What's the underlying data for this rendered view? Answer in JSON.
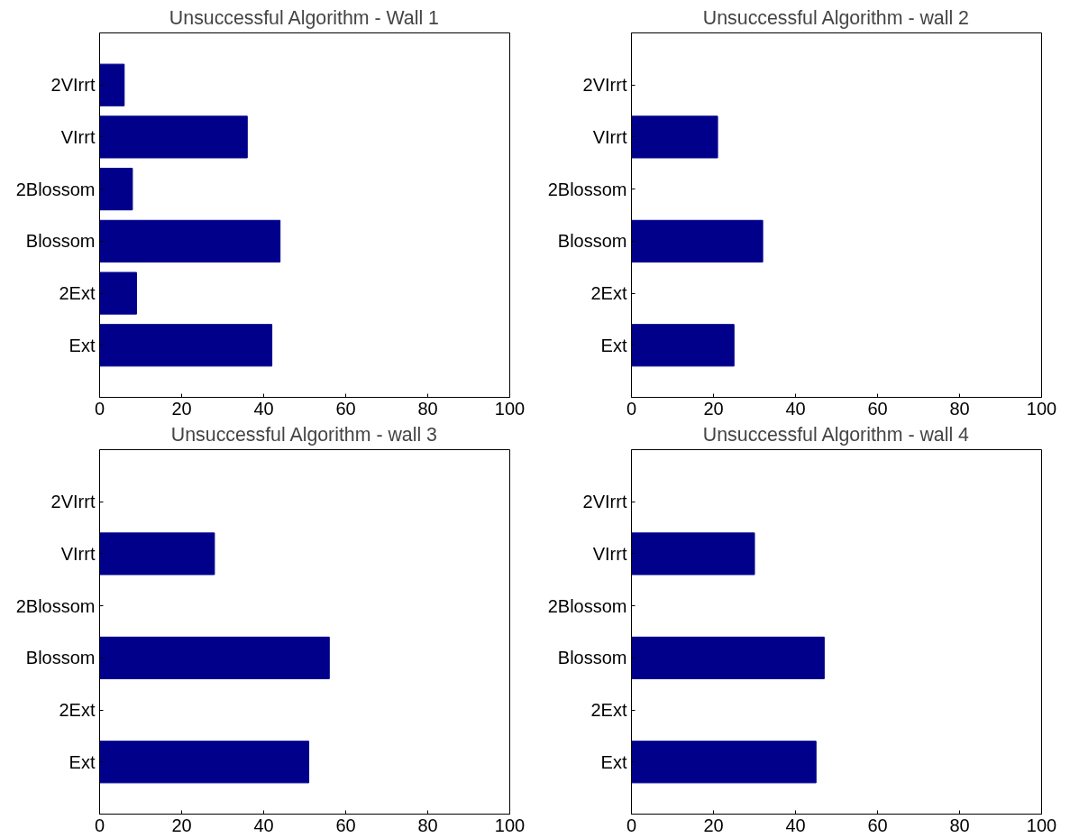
{
  "chart_data": [
    {
      "type": "bar",
      "orientation": "horizontal",
      "title": "Unsuccessful Algorithm - Wall 1",
      "categories": [
        "2VIrrt",
        "VIrrt",
        "2Blossom",
        "Blossom",
        "2Ext",
        "Ext"
      ],
      "values": [
        6,
        36,
        8,
        44,
        9,
        42
      ],
      "color": "#00008b",
      "xlim": [
        0,
        100
      ],
      "xticks": [
        0,
        20,
        40,
        60,
        80,
        100
      ],
      "grid": false
    },
    {
      "type": "bar",
      "orientation": "horizontal",
      "title": "Unsuccessful Algorithm - wall 2",
      "categories": [
        "2VIrrt",
        "VIrrt",
        "2Blossom",
        "Blossom",
        "2Ext",
        "Ext"
      ],
      "values": [
        null,
        21,
        null,
        32,
        null,
        25
      ],
      "color": "#00008b",
      "xlim": [
        0,
        100
      ],
      "xticks": [
        0,
        20,
        40,
        60,
        80,
        100
      ],
      "grid": false
    },
    {
      "type": "bar",
      "orientation": "horizontal",
      "title": "Unsuccessful Algorithm - wall 3",
      "categories": [
        "2VIrrt",
        "VIrrt",
        "2Blossom",
        "Blossom",
        "2Ext",
        "Ext"
      ],
      "values": [
        null,
        28,
        null,
        56,
        null,
        51
      ],
      "color": "#00008b",
      "xlim": [
        0,
        100
      ],
      "xticks": [
        0,
        20,
        40,
        60,
        80,
        100
      ],
      "grid": false
    },
    {
      "type": "bar",
      "orientation": "horizontal",
      "title": "Unsuccessful Algorithm - wall 4",
      "categories": [
        "2VIrrt",
        "VIrrt",
        "2Blossom",
        "Blossom",
        "2Ext",
        "Ext"
      ],
      "values": [
        null,
        30,
        null,
        47,
        null,
        45
      ],
      "color": "#00008b",
      "xlim": [
        0,
        100
      ],
      "xticks": [
        0,
        20,
        40,
        60,
        80,
        100
      ],
      "grid": false
    }
  ]
}
